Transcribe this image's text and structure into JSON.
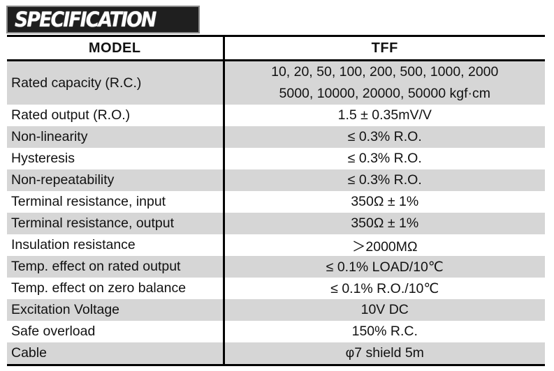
{
  "section_title": "SPECIFICATION",
  "header": {
    "model_label": "MODEL",
    "product_label": "TFF"
  },
  "rows": [
    {
      "parameter": "Rated capacity (R.C.)",
      "value_lines": [
        "10, 20, 50, 100, 200, 500, 1000, 2000",
        "5000, 10000, 20000, 50000 kgf·cm"
      ],
      "shaded": true
    },
    {
      "parameter": "Rated output (R.O.)",
      "value": "1.5 ± 0.35mV/V",
      "shaded": false
    },
    {
      "parameter": "Non-linearity",
      "value": "≤ 0.3% R.O.",
      "shaded": true
    },
    {
      "parameter": "Hysteresis",
      "value": "≤ 0.3% R.O.",
      "shaded": false
    },
    {
      "parameter": "Non-repeatability",
      "value": "≤ 0.3% R.O.",
      "shaded": true
    },
    {
      "parameter": "Terminal resistance, input",
      "value": "350Ω ± 1%",
      "shaded": false
    },
    {
      "parameter": "Terminal resistance, output",
      "value": "350Ω ± 1%",
      "shaded": true
    },
    {
      "parameter": "Insulation resistance",
      "value": "＞2000MΩ",
      "shaded": false
    },
    {
      "parameter": "Temp. effect on rated output",
      "value": "≤ 0.1% LOAD/10℃",
      "shaded": true
    },
    {
      "parameter": "Temp. effect on zero balance",
      "value": "≤ 0.1% R.O./10℃",
      "shaded": false
    },
    {
      "parameter": "Excitation Voltage",
      "value": "10V DC",
      "shaded": true
    },
    {
      "parameter": "Safe overload",
      "value": "150% R.C.",
      "shaded": false
    },
    {
      "parameter": "Cable",
      "value": "φ7 shield 5m",
      "shaded": true
    }
  ],
  "colors": {
    "shaded_row": "#d6d6d6",
    "title_background": "#1f1f1f",
    "title_text": "#ffffff"
  }
}
